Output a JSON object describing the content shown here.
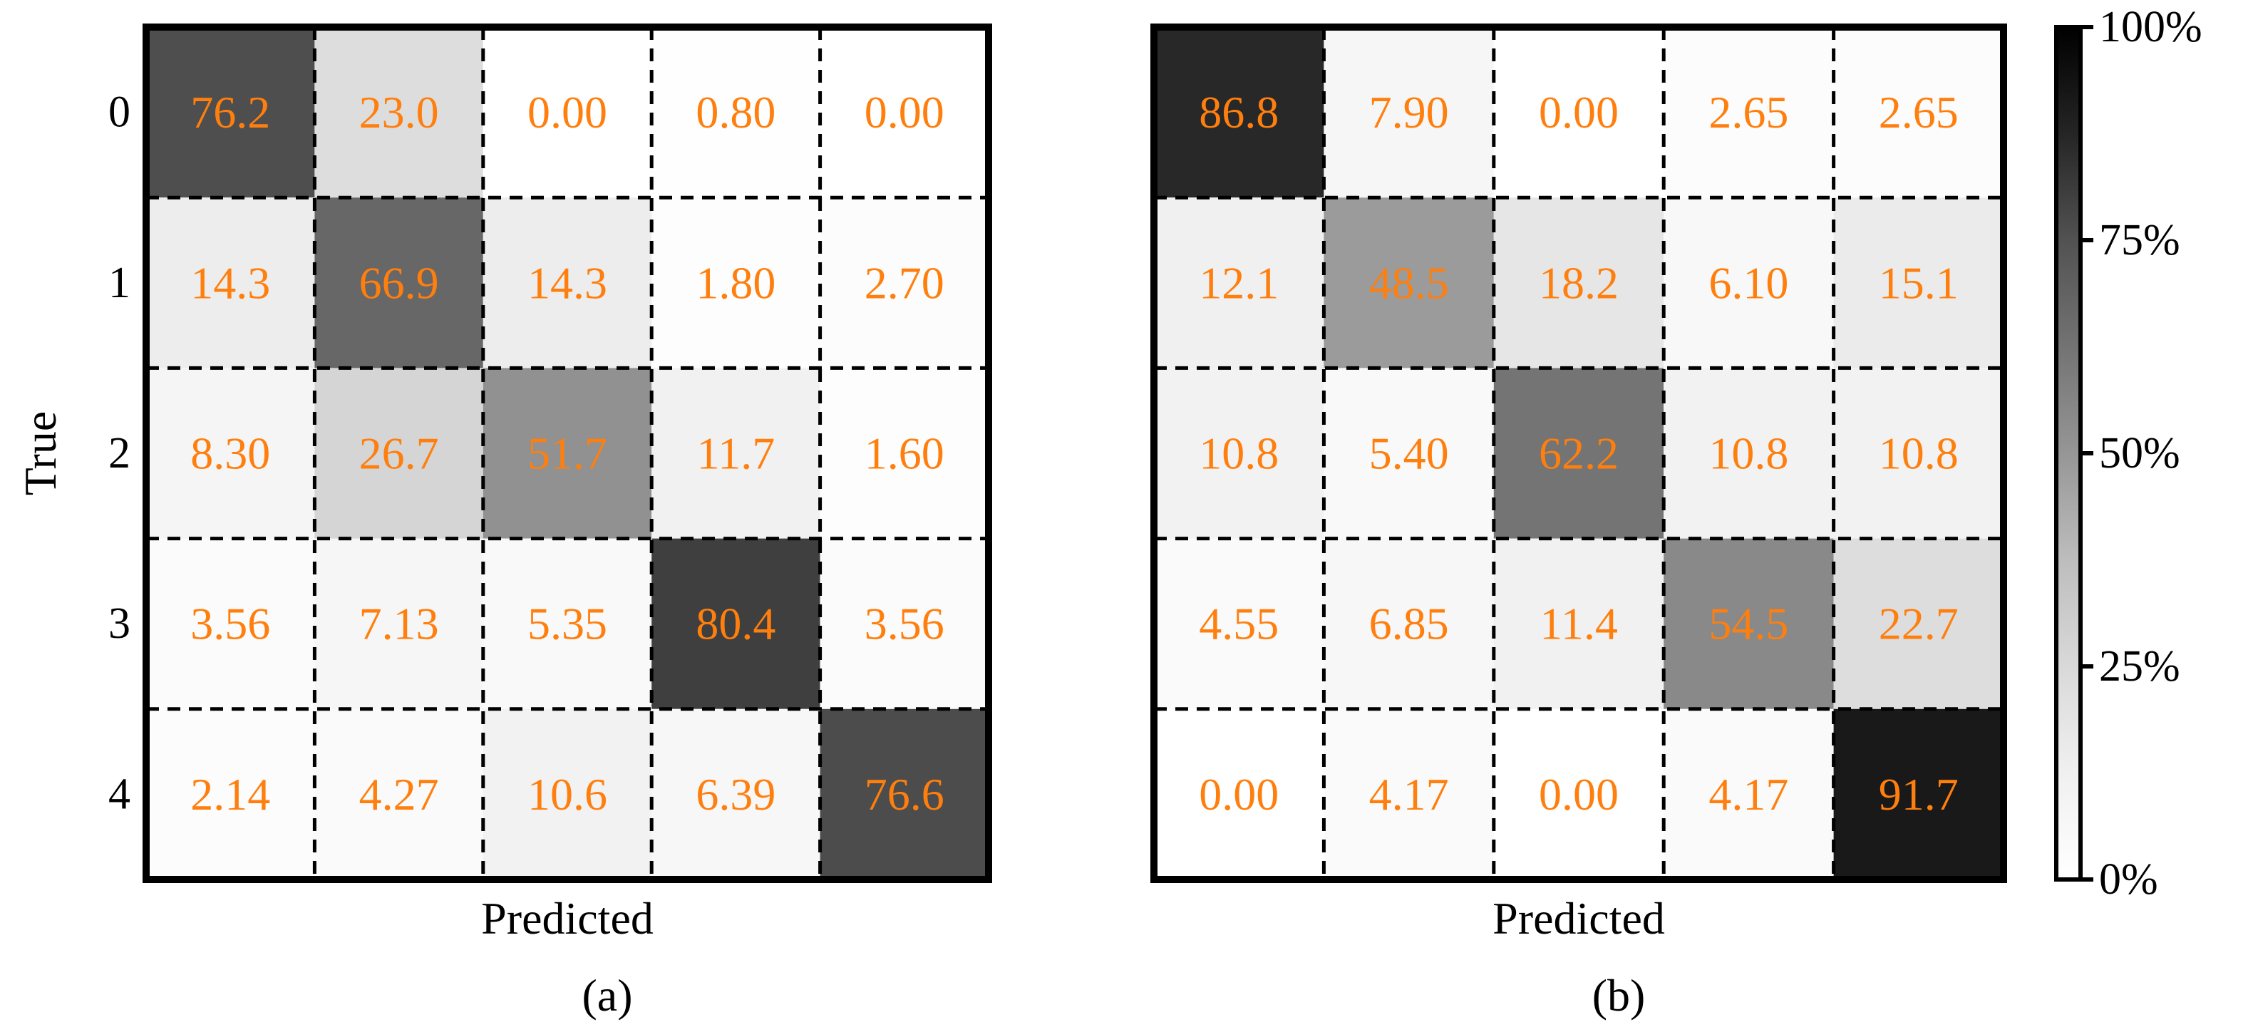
{
  "chart_data": [
    {
      "type": "heatmap",
      "panel_label": "(a)",
      "panel_letter": "a",
      "xlabel": "Predicted",
      "ylabel": "True",
      "row_labels": [
        "0",
        "1",
        "2",
        "3",
        "4"
      ],
      "values": [
        [
          "76.2",
          "23.0",
          "0.00",
          "0.80",
          "0.00"
        ],
        [
          "14.3",
          "66.9",
          "14.3",
          "1.80",
          "2.70"
        ],
        [
          "8.30",
          "26.7",
          "51.7",
          "11.7",
          "1.60"
        ],
        [
          "3.56",
          "7.13",
          "5.35",
          "80.4",
          "3.56"
        ],
        [
          "2.14",
          "4.27",
          "10.6",
          "6.39",
          "76.6"
        ]
      ]
    },
    {
      "type": "heatmap",
      "panel_label": "(b)",
      "panel_letter": "b",
      "xlabel": "Predicted",
      "ylabel": "",
      "row_labels": [],
      "values": [
        [
          "86.8",
          "7.90",
          "0.00",
          "2.65",
          "2.65"
        ],
        [
          "12.1",
          "48.5",
          "18.2",
          "6.10",
          "15.1"
        ],
        [
          "10.8",
          "5.40",
          "62.2",
          "10.8",
          "10.8"
        ],
        [
          "4.55",
          "6.85",
          "11.4",
          "54.5",
          "22.7"
        ],
        [
          "0.00",
          "4.17",
          "0.00",
          "4.17",
          "91.7"
        ]
      ]
    }
  ],
  "colorbar": {
    "colormap": "Greys",
    "range": [
      0,
      100
    ],
    "ticks": [
      0,
      25,
      50,
      75,
      100
    ],
    "tick_labels": [
      "0%",
      "25%",
      "50%",
      "75%",
      "100%"
    ]
  },
  "colors": {
    "annotation": "#ff7f0e",
    "grid": "#000000"
  },
  "grid": "dashed cell borders"
}
